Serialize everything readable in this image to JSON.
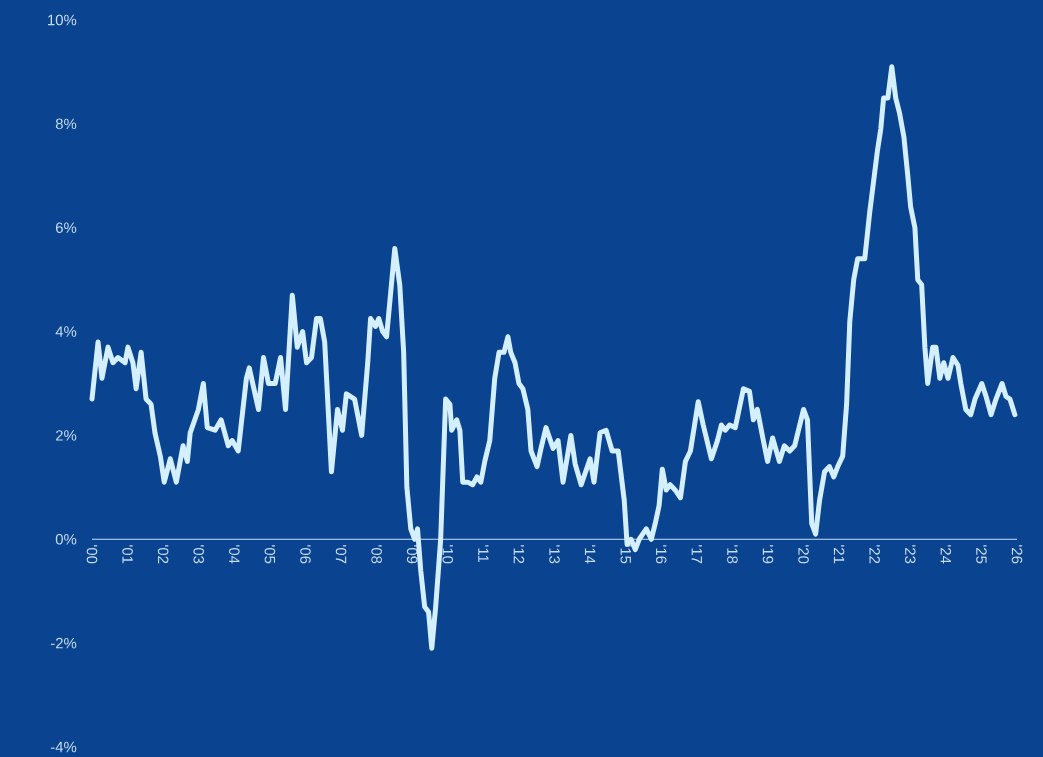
{
  "chart_data": {
    "type": "line",
    "color": "#d4efff",
    "x": [
      2000.0,
      2000.17,
      2000.28,
      2000.45,
      2000.59,
      2000.73,
      2000.93,
      2001.01,
      2001.15,
      2001.24,
      2001.38,
      2001.52,
      2001.66,
      2001.77,
      2001.92,
      2002.03,
      2002.2,
      2002.37,
      2002.56,
      2002.68,
      2002.76,
      2002.99,
      2003.13,
      2003.24,
      2003.46,
      2003.63,
      2003.83,
      2003.94,
      2004.11,
      2004.34,
      2004.42,
      2004.68,
      2004.82,
      2004.96,
      2005.15,
      2005.3,
      2005.44,
      2005.63,
      2005.77,
      2005.92,
      2006.03,
      2006.17,
      2006.31,
      2006.42,
      2006.54,
      2006.73,
      2006.9,
      2007.04,
      2007.15,
      2007.38,
      2007.58,
      2007.75,
      2007.83,
      2007.97,
      2008.06,
      2008.17,
      2008.28,
      2008.51,
      2008.65,
      2008.76,
      2008.85,
      2008.96,
      2009.07,
      2009.15,
      2009.24,
      2009.35,
      2009.46,
      2009.55,
      2009.66,
      2009.8,
      2009.94,
      2010.06,
      2010.11,
      2010.25,
      2010.34,
      2010.42,
      2010.56,
      2010.7,
      2010.82,
      2010.93,
      2011.04,
      2011.18,
      2011.32,
      2011.44,
      2011.58,
      2011.69,
      2011.77,
      2011.89,
      2012.0,
      2012.11,
      2012.25,
      2012.34,
      2012.51,
      2012.62,
      2012.76,
      2012.96,
      2013.1,
      2013.24,
      2013.46,
      2013.58,
      2013.75,
      2014.0,
      2014.11,
      2014.28,
      2014.45,
      2014.62,
      2014.79,
      2014.96,
      2015.04,
      2015.15,
      2015.27,
      2015.38,
      2015.58,
      2015.72,
      2015.83,
      2015.94,
      2016.03,
      2016.14,
      2016.25,
      2016.39,
      2016.54,
      2016.68,
      2016.82,
      2017.04,
      2017.18,
      2017.41,
      2017.58,
      2017.69,
      2017.8,
      2017.92,
      2018.08,
      2018.31,
      2018.48,
      2018.59,
      2018.7,
      2018.87,
      2018.99,
      2019.13,
      2019.32,
      2019.46,
      2019.61,
      2019.75,
      2020.0,
      2020.11,
      2020.23,
      2020.34,
      2020.45,
      2020.59,
      2020.73,
      2020.85,
      2020.96,
      2021.1,
      2021.21,
      2021.3,
      2021.41,
      2021.52,
      2021.63,
      2021.72,
      2021.86,
      2021.97,
      2022.08,
      2022.17,
      2022.25,
      2022.37,
      2022.48,
      2022.59,
      2022.7,
      2022.82,
      2022.93,
      2023.01,
      2023.13,
      2023.21,
      2023.32,
      2023.41,
      2023.49,
      2023.63,
      2023.72,
      2023.83,
      2023.94,
      2024.06,
      2024.2,
      2024.34,
      2024.42,
      2024.56,
      2024.7,
      2024.82,
      2025.01,
      2025.13,
      2025.27,
      2025.41,
      2025.58,
      2025.69,
      2025.8,
      2025.94
    ],
    "values": [
      2.7,
      3.8,
      3.1,
      3.7,
      3.4,
      3.5,
      3.4,
      3.7,
      3.4,
      2.9,
      3.6,
      2.7,
      2.6,
      2.05,
      1.6,
      1.1,
      1.55,
      1.1,
      1.8,
      1.5,
      2.05,
      2.5,
      3.0,
      2.15,
      2.1,
      2.3,
      1.8,
      1.9,
      1.7,
      3.1,
      3.3,
      2.5,
      3.5,
      3.0,
      3.0,
      3.5,
      2.5,
      4.7,
      3.7,
      4.0,
      3.4,
      3.5,
      4.25,
      4.25,
      3.8,
      1.3,
      2.5,
      2.1,
      2.8,
      2.7,
      2.0,
      3.4,
      4.25,
      4.1,
      4.25,
      4.0,
      3.9,
      5.6,
      4.9,
      3.6,
      1.0,
      0.2,
      0.0,
      0.2,
      -0.6,
      -1.3,
      -1.4,
      -2.1,
      -1.3,
      0.0,
      2.7,
      2.6,
      2.1,
      2.3,
      2.1,
      1.1,
      1.1,
      1.05,
      1.2,
      1.1,
      1.5,
      1.9,
      3.1,
      3.6,
      3.6,
      3.9,
      3.6,
      3.4,
      3.0,
      2.9,
      2.5,
      1.7,
      1.4,
      1.75,
      2.15,
      1.75,
      1.9,
      1.1,
      2.0,
      1.45,
      1.05,
      1.55,
      1.1,
      2.05,
      2.1,
      1.7,
      1.7,
      0.75,
      -0.1,
      0.0,
      -0.2,
      0.0,
      0.2,
      0.0,
      0.3,
      0.65,
      1.35,
      0.95,
      1.05,
      0.95,
      0.8,
      1.5,
      1.7,
      2.65,
      2.2,
      1.55,
      1.9,
      2.2,
      2.1,
      2.2,
      2.15,
      2.9,
      2.85,
      2.3,
      2.5,
      1.9,
      1.5,
      1.95,
      1.5,
      1.8,
      1.7,
      1.8,
      2.5,
      2.3,
      0.3,
      0.1,
      0.75,
      1.3,
      1.4,
      1.2,
      1.4,
      1.6,
      2.6,
      4.2,
      5.0,
      5.4,
      5.4,
      5.4,
      6.3,
      6.9,
      7.5,
      7.9,
      8.5,
      8.5,
      9.1,
      8.5,
      8.2,
      7.75,
      7.0,
      6.4,
      6.0,
      5.0,
      4.9,
      3.7,
      3.0,
      3.7,
      3.7,
      3.1,
      3.4,
      3.1,
      3.5,
      3.35,
      3.0,
      2.5,
      2.4,
      2.7,
      3.0,
      2.75,
      2.4,
      2.7,
      3.0,
      2.75,
      2.7,
      2.4
    ],
    "xlim": [
      2000,
      2026
    ],
    "ylim": [
      -4,
      10
    ],
    "xticks": [
      {
        "value": 2000,
        "label": "'00"
      },
      {
        "value": 2001,
        "label": "'01"
      },
      {
        "value": 2002,
        "label": "'02"
      },
      {
        "value": 2003,
        "label": "'03"
      },
      {
        "value": 2004,
        "label": "'04"
      },
      {
        "value": 2005,
        "label": "'05"
      },
      {
        "value": 2006,
        "label": "'06"
      },
      {
        "value": 2007,
        "label": "'07"
      },
      {
        "value": 2008,
        "label": "'08"
      },
      {
        "value": 2009,
        "label": "'09"
      },
      {
        "value": 2010,
        "label": "'10"
      },
      {
        "value": 2011,
        "label": "'11"
      },
      {
        "value": 2012,
        "label": "'12"
      },
      {
        "value": 2013,
        "label": "'13"
      },
      {
        "value": 2014,
        "label": "'14"
      },
      {
        "value": 2015,
        "label": "'15"
      },
      {
        "value": 2016,
        "label": "'16"
      },
      {
        "value": 2017,
        "label": "'17"
      },
      {
        "value": 2018,
        "label": "'18"
      },
      {
        "value": 2019,
        "label": "'19"
      },
      {
        "value": 2020,
        "label": "'20"
      },
      {
        "value": 2021,
        "label": "'21"
      },
      {
        "value": 2022,
        "label": "'22"
      },
      {
        "value": 2023,
        "label": "'23"
      },
      {
        "value": 2024,
        "label": "'24"
      },
      {
        "value": 2025,
        "label": "'25"
      },
      {
        "value": 2026,
        "label": "'26"
      }
    ],
    "yticks": [
      {
        "value": -4,
        "label": "-4%"
      },
      {
        "value": -2,
        "label": "-2%"
      },
      {
        "value": 0,
        "label": "0%"
      },
      {
        "value": 2,
        "label": "2%"
      },
      {
        "value": 4,
        "label": "4%"
      },
      {
        "value": 6,
        "label": "6%"
      },
      {
        "value": 8,
        "label": "8%"
      },
      {
        "value": 10,
        "label": "10%"
      }
    ]
  }
}
